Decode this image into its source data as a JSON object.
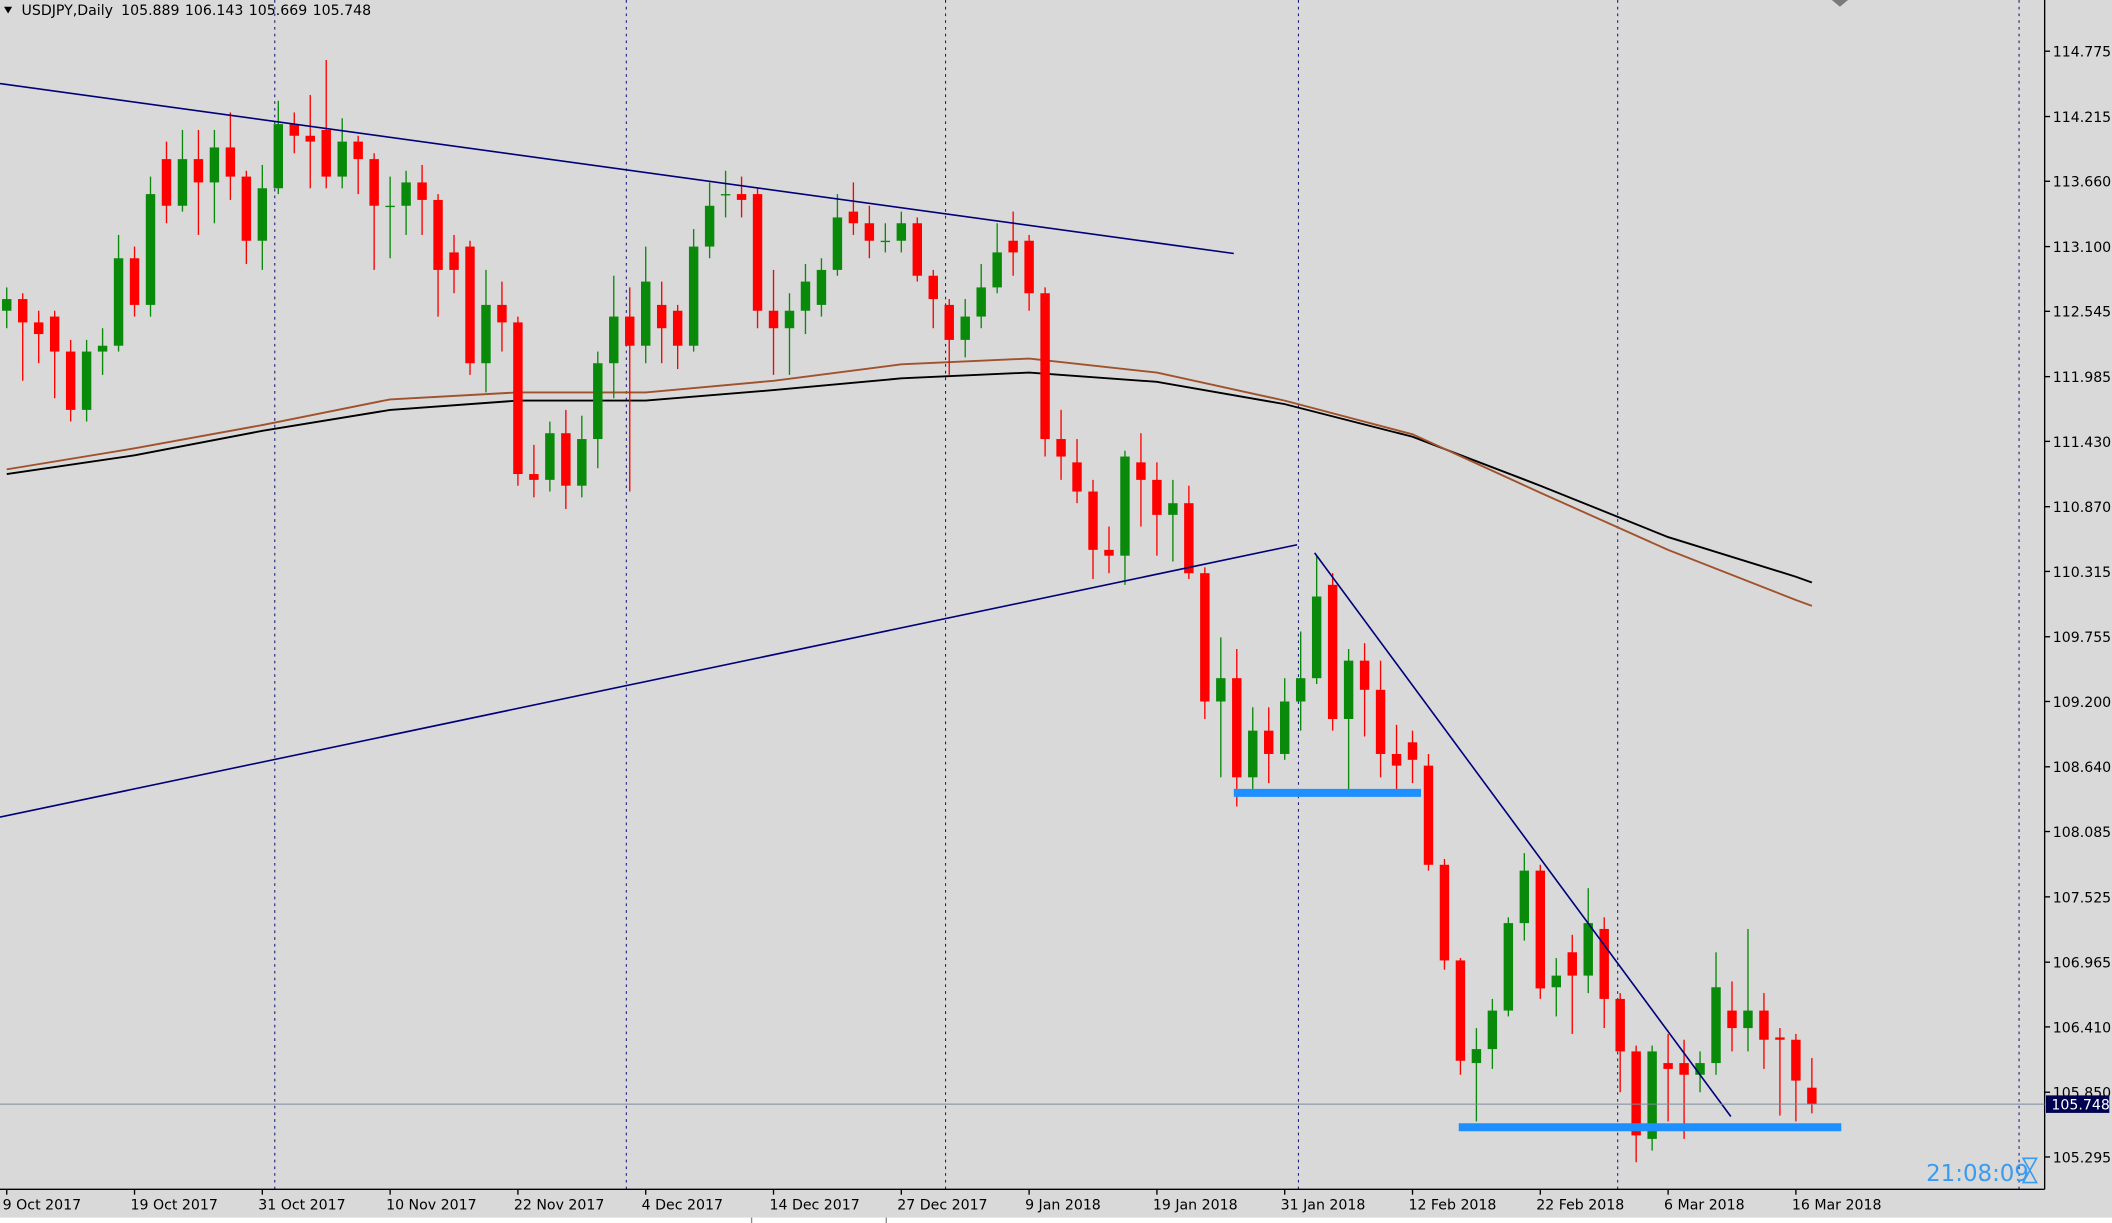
{
  "chart_data": {
    "type": "candlestick",
    "title": "USDJPY,Daily",
    "timer": "21:08:09",
    "up_color": "#0a8a0a",
    "down_color": "#ff0000",
    "categories": [
      "9 Oct 2017",
      null,
      null,
      null,
      null,
      null,
      null,
      null,
      "19 Oct 2017",
      null,
      null,
      null,
      null,
      null,
      null,
      null,
      "31 Oct 2017",
      null,
      null,
      null,
      null,
      null,
      null,
      null,
      "10 Nov 2017",
      null,
      null,
      null,
      null,
      null,
      null,
      null,
      "22 Nov 2017",
      null,
      null,
      null,
      null,
      null,
      null,
      null,
      "4 Dec 2017",
      null,
      null,
      null,
      null,
      null,
      null,
      null,
      "14 Dec 2017",
      null,
      null,
      null,
      null,
      null,
      null,
      null,
      "27 Dec 2017",
      null,
      null,
      null,
      null,
      null,
      null,
      null,
      "9 Jan 2018",
      null,
      null,
      null,
      null,
      null,
      null,
      null,
      "19 Jan 2018",
      null,
      null,
      null,
      null,
      null,
      null,
      null,
      "31 Jan 2018",
      null,
      null,
      null,
      null,
      null,
      null,
      null,
      "12 Feb 2018",
      null,
      null,
      null,
      null,
      null,
      null,
      null,
      "22 Feb 2018",
      null,
      null,
      null,
      null,
      null,
      null,
      null,
      "6 Mar 2018",
      null,
      null,
      null,
      null,
      null,
      null,
      null,
      "16 Mar 2018",
      null
    ],
    "open": [
      112.55,
      112.65,
      112.45,
      112.5,
      112.2,
      111.7,
      112.2,
      112.25,
      113.0,
      112.6,
      113.85,
      113.45,
      113.85,
      113.65,
      113.95,
      113.7,
      113.15,
      113.6,
      114.15,
      114.05,
      114.1,
      113.7,
      114.0,
      113.85,
      113.45,
      113.45,
      113.65,
      113.5,
      113.05,
      113.1,
      112.1,
      112.6,
      112.45,
      111.15,
      111.1,
      111.5,
      111.05,
      111.45,
      112.1,
      112.5,
      112.25,
      112.6,
      112.55,
      112.25,
      113.1,
      113.55,
      113.55,
      113.55,
      112.55,
      112.4,
      112.55,
      112.6,
      112.9,
      113.4,
      113.3,
      113.15,
      113.15,
      113.3,
      112.85,
      112.6,
      112.3,
      112.5,
      112.75,
      113.15,
      113.15,
      112.7,
      111.45,
      111.25,
      111.0,
      110.5,
      110.45,
      111.25,
      111.1,
      110.8,
      110.9,
      110.3,
      109.2,
      109.4,
      108.55,
      108.95,
      108.75,
      109.2,
      109.4,
      110.2,
      109.05,
      109.55,
      109.3,
      108.75,
      108.85,
      108.65,
      107.8,
      106.98,
      106.1,
      106.22,
      106.55,
      107.3,
      107.75,
      106.75,
      107.05,
      106.85,
      107.25,
      106.65,
      106.2,
      105.45,
      106.1,
      106.1,
      106.0,
      106.1,
      106.55,
      106.4,
      106.55,
      106.32,
      106.3,
      105.889
    ],
    "high": [
      112.75,
      112.7,
      112.55,
      112.55,
      112.3,
      112.3,
      112.4,
      113.2,
      113.1,
      113.7,
      114.0,
      114.1,
      114.1,
      114.1,
      114.25,
      113.75,
      113.8,
      114.35,
      114.25,
      114.4,
      114.7,
      114.2,
      114.05,
      113.9,
      113.7,
      113.75,
      113.8,
      113.55,
      113.2,
      113.15,
      112.9,
      112.8,
      112.5,
      111.4,
      111.6,
      111.7,
      111.65,
      112.2,
      112.85,
      112.75,
      113.1,
      112.8,
      112.6,
      113.25,
      113.65,
      113.75,
      113.7,
      113.6,
      112.9,
      112.7,
      112.95,
      113.0,
      113.55,
      113.65,
      113.45,
      113.3,
      113.4,
      113.35,
      112.9,
      112.65,
      112.65,
      112.95,
      113.3,
      113.4,
      113.2,
      112.75,
      111.7,
      111.45,
      111.1,
      110.7,
      111.35,
      111.5,
      111.25,
      111.1,
      111.05,
      110.35,
      109.75,
      109.65,
      109.15,
      109.15,
      109.4,
      109.8,
      110.45,
      110.3,
      109.65,
      109.7,
      109.55,
      109.0,
      108.95,
      108.75,
      107.85,
      107.0,
      106.4,
      106.65,
      107.35,
      107.9,
      107.8,
      107.0,
      107.2,
      107.6,
      107.35,
      106.7,
      106.25,
      106.25,
      106.35,
      106.3,
      106.2,
      107.05,
      106.8,
      107.25,
      106.7,
      106.4,
      106.35,
      106.143
    ],
    "low": [
      112.4,
      111.95,
      112.1,
      111.8,
      111.6,
      111.6,
      112.0,
      112.2,
      112.5,
      112.5,
      113.3,
      113.4,
      113.2,
      113.3,
      113.5,
      112.95,
      112.9,
      113.55,
      113.9,
      113.6,
      113.6,
      113.6,
      113.55,
      112.9,
      113.0,
      113.2,
      113.2,
      112.5,
      112.7,
      112.0,
      111.85,
      112.2,
      111.05,
      110.95,
      111.0,
      110.85,
      110.95,
      111.2,
      111.8,
      111.0,
      112.1,
      112.1,
      112.05,
      112.2,
      113.0,
      113.35,
      113.35,
      112.4,
      112.0,
      112.0,
      112.35,
      112.5,
      112.85,
      113.2,
      113.0,
      113.05,
      113.05,
      112.8,
      112.4,
      112.0,
      112.15,
      112.4,
      112.7,
      112.85,
      112.55,
      111.3,
      111.1,
      110.9,
      110.25,
      110.3,
      110.2,
      110.7,
      110.45,
      110.4,
      110.25,
      109.05,
      108.55,
      108.3,
      108.45,
      108.5,
      108.7,
      108.95,
      109.35,
      108.95,
      108.45,
      108.9,
      108.55,
      108.45,
      108.5,
      107.75,
      106.9,
      106.0,
      105.6,
      106.05,
      106.5,
      107.15,
      106.65,
      106.5,
      106.35,
      106.7,
      106.4,
      105.85,
      105.25,
      105.35,
      105.6,
      105.45,
      105.85,
      106.0,
      106.2,
      106.2,
      106.05,
      105.65,
      105.6,
      105.669
    ],
    "close": [
      112.65,
      112.45,
      112.35,
      112.2,
      111.7,
      112.2,
      112.25,
      113.0,
      112.6,
      113.55,
      113.45,
      113.85,
      113.65,
      113.95,
      113.7,
      113.15,
      113.6,
      114.15,
      114.05,
      114.0,
      113.7,
      114.0,
      113.85,
      113.45,
      113.45,
      113.65,
      113.5,
      112.9,
      112.9,
      112.1,
      112.6,
      112.45,
      111.15,
      111.1,
      111.5,
      111.05,
      111.45,
      112.1,
      112.5,
      112.25,
      112.8,
      112.4,
      112.25,
      113.1,
      113.45,
      113.55,
      113.5,
      112.55,
      112.4,
      112.55,
      112.8,
      112.9,
      113.35,
      113.3,
      113.15,
      113.15,
      113.3,
      112.85,
      112.65,
      112.3,
      112.5,
      112.75,
      113.05,
      113.05,
      112.7,
      111.45,
      111.3,
      111.0,
      110.5,
      110.45,
      111.3,
      111.1,
      110.8,
      110.9,
      110.3,
      109.2,
      109.4,
      108.55,
      108.95,
      108.75,
      109.2,
      109.4,
      110.1,
      109.05,
      109.55,
      109.3,
      108.75,
      108.65,
      108.7,
      107.8,
      106.98,
      106.12,
      106.22,
      106.55,
      107.3,
      107.75,
      106.74,
      106.85,
      106.85,
      107.3,
      106.65,
      106.2,
      105.48,
      106.2,
      106.05,
      106.0,
      106.1,
      106.75,
      106.4,
      106.55,
      106.3,
      106.3,
      105.95,
      105.748
    ],
    "overlays": [
      {
        "color": "#000000",
        "x": [
          0,
          8,
          16,
          24,
          32,
          40,
          48,
          56,
          64,
          72,
          80,
          88,
          96,
          104,
          112,
          113
        ],
        "values": [
          111.15,
          111.31,
          111.52,
          111.7,
          111.78,
          111.78,
          111.87,
          111.97,
          112.02,
          111.94,
          111.75,
          111.47,
          111.05,
          110.61,
          110.27,
          110.22
        ]
      },
      {
        "color": "#a0522d",
        "x": [
          0,
          8,
          16,
          24,
          32,
          40,
          48,
          56,
          64,
          72,
          80,
          88,
          96,
          104,
          112,
          113
        ],
        "values": [
          111.19,
          111.37,
          111.57,
          111.79,
          111.85,
          111.85,
          111.95,
          112.09,
          112.14,
          112.02,
          111.78,
          111.49,
          110.99,
          110.5,
          110.07,
          110.02
        ]
      }
    ],
    "ylim": [
      105.018,
      115.214
    ],
    "yticks": [
      114.775,
      114.215,
      {
        "value": 113.66,
        "label": "113.660"
      },
      {
        "value": 113.1,
        "label": "113.100"
      },
      112.545,
      111.985,
      {
        "value": 111.43,
        "label": "111.430"
      },
      {
        "value": 110.87,
        "label": "110.870"
      },
      110.315,
      109.755,
      {
        "value": 109.2,
        "label": "109.200"
      },
      {
        "value": 108.64,
        "label": "108.640"
      },
      108.085,
      107.525,
      106.965,
      {
        "value": 106.41,
        "label": "106.410"
      },
      {
        "value": 105.85,
        "label": "105.850"
      },
      105.295
    ]
  }
}
